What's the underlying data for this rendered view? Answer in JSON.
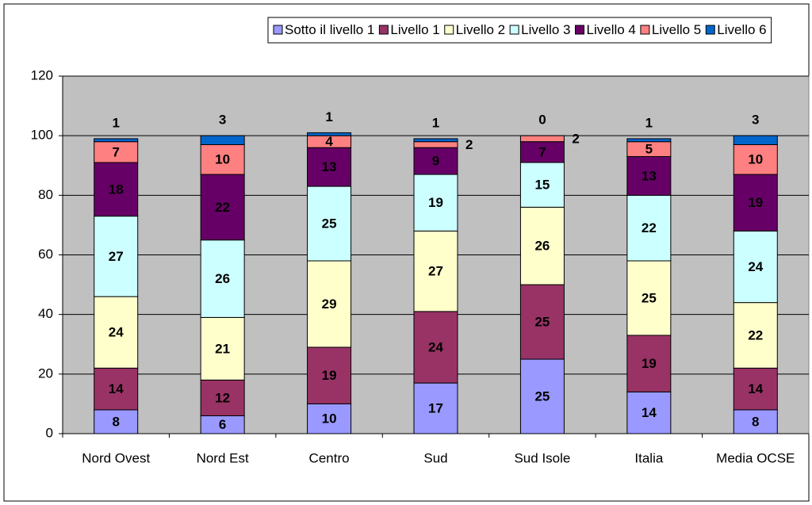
{
  "chart_data": {
    "type": "stacked_bar",
    "categories": [
      "Nord Ovest",
      "Nord Est",
      "Centro",
      "Sud",
      "Sud Isole",
      "Italia",
      "Media OCSE"
    ],
    "series": [
      {
        "name": "Sotto il livello 1",
        "color": "#9999ff",
        "values": [
          8,
          6,
          10,
          17,
          25,
          14,
          8
        ]
      },
      {
        "name": "Livello 1",
        "color": "#993366",
        "values": [
          14,
          12,
          19,
          24,
          25,
          19,
          14
        ]
      },
      {
        "name": "Livello 2",
        "color": "#ffffcc",
        "values": [
          24,
          21,
          29,
          27,
          26,
          25,
          22
        ]
      },
      {
        "name": "Livello 3",
        "color": "#ccffff",
        "values": [
          27,
          26,
          25,
          19,
          15,
          22,
          24
        ]
      },
      {
        "name": "Livello 4",
        "color": "#660066",
        "values": [
          18,
          22,
          13,
          9,
          7,
          13,
          19
        ]
      },
      {
        "name": "Livello 5",
        "color": "#ff8080",
        "values": [
          7,
          10,
          4,
          2,
          2,
          5,
          10
        ]
      },
      {
        "name": "Livello 6",
        "color": "#0066cc",
        "values": [
          1,
          3,
          1,
          1,
          0,
          1,
          3
        ]
      }
    ],
    "ylim": [
      0,
      120
    ],
    "yticks": [
      0,
      20,
      40,
      60,
      80,
      100,
      120
    ],
    "grid": true,
    "legend": "top"
  }
}
